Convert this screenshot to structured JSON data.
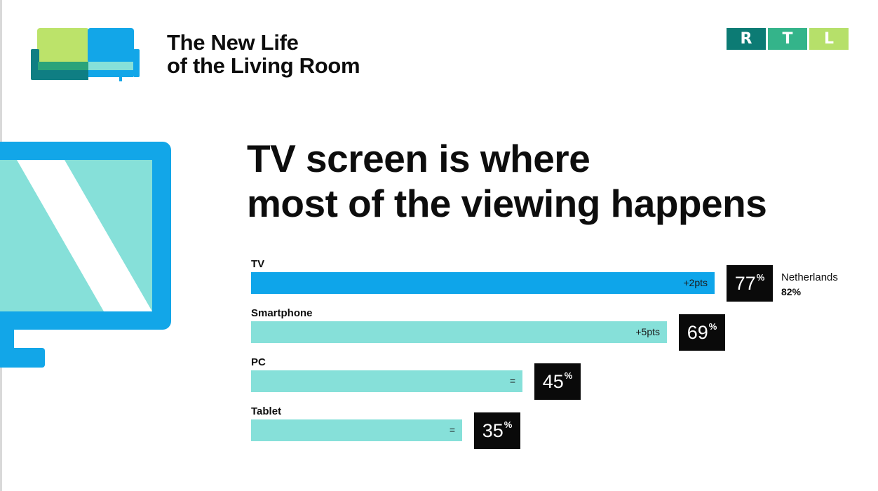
{
  "header": {
    "title_line1": "The New Life",
    "title_line2": "of the Living Room",
    "brand_letters": [
      "R",
      "T",
      "L"
    ],
    "brand_colors": [
      "#0c7b74",
      "#34b48a",
      "#b6e06a"
    ]
  },
  "headline": {
    "line1": "TV screen is where",
    "line2": "most of the viewing happens"
  },
  "comparison": {
    "label": "Netherlands",
    "value": "82%"
  },
  "colors": {
    "tv_bar": "#0ea5ea",
    "other_bar": "#86e0d9",
    "value_box": "#0a0a0a"
  },
  "chart_data": {
    "type": "bar",
    "orientation": "horizontal",
    "categories": [
      "TV",
      "Smartphone",
      "PC",
      "Tablet"
    ],
    "values": [
      77,
      69,
      45,
      35
    ],
    "value_labels": [
      "77",
      "69",
      "45",
      "35"
    ],
    "value_unit": "%",
    "change_labels": [
      "+2pts",
      "+5pts",
      "=",
      "="
    ],
    "ylim": [
      0,
      100
    ],
    "legend": false,
    "grid": false
  }
}
